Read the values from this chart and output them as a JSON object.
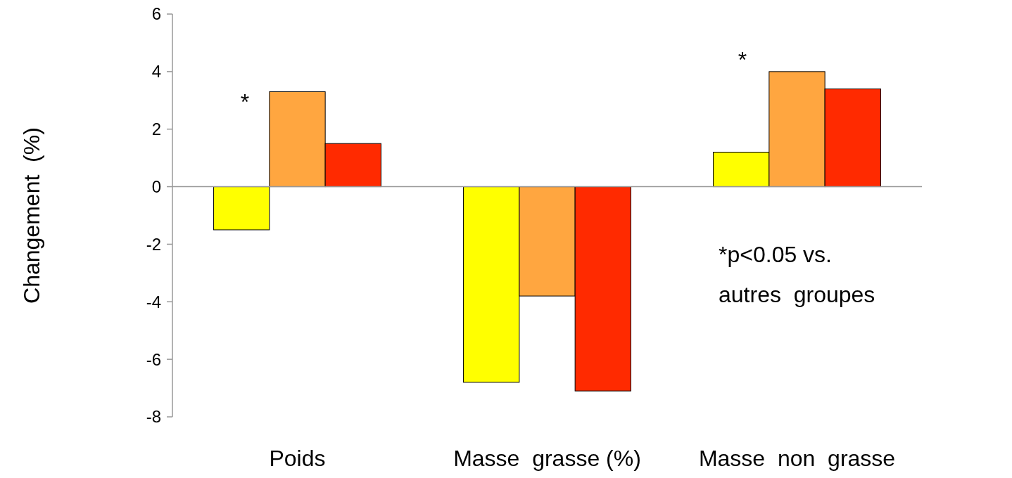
{
  "chart_data": {
    "type": "bar",
    "ylabel": "Changement  (%)",
    "categories": [
      "Poids",
      "Masse  grasse (%)",
      "Masse  non  grasse"
    ],
    "series": [
      {
        "color": "#ffff00",
        "values": [
          -1.5,
          -6.8,
          1.2
        ]
      },
      {
        "color": "#ffa640",
        "values": [
          3.3,
          -3.8,
          4.0
        ]
      },
      {
        "color": "#ff2a00",
        "values": [
          1.5,
          -7.1,
          3.4
        ]
      }
    ],
    "ylim": [
      -8,
      6
    ],
    "yticks": [
      -8,
      -6,
      -4,
      -2,
      0,
      2,
      4,
      6
    ],
    "annotations": [
      "*",
      "*",
      "*p<0.05 vs.\nautres  groupes"
    ]
  }
}
